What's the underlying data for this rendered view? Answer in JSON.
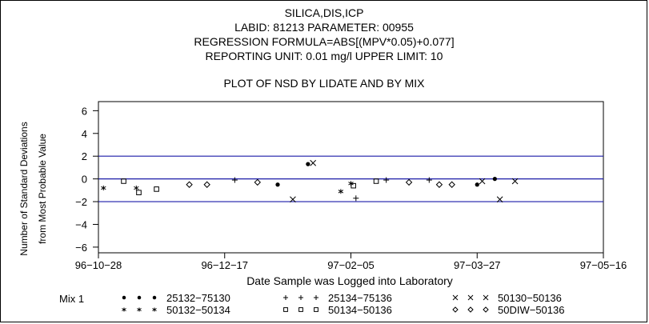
{
  "chart_data": {
    "type": "scatter",
    "title_lines": [
      "SILICA,DIS,ICP",
      "LABID: 81213 PARAMETER: 00955",
      "REGRESSION FORMULA=ABS[(MPV*0.05)+0.077]",
      "REPORTING UNIT: 0.01 mg/l UPPER LIMIT: 10"
    ],
    "subtitle": "PLOT OF NSD BY LIDATE AND BY MIX",
    "ylabel_lines": [
      "Number of Standard Deviations",
      "from Most Probable Value"
    ],
    "xlabel": "Date Sample was Logged into Laboratory",
    "ylim": [
      -6.5,
      6.8
    ],
    "yticks": [
      6,
      4,
      2,
      0,
      -2,
      -4,
      -6
    ],
    "ytick_labels": [
      "6",
      "4",
      "2",
      "0",
      "−2",
      "−4",
      "−6"
    ],
    "xlim": [
      "1996-10-28",
      "1997-05-16"
    ],
    "xticks": [
      "1996-10-28",
      "1996-12-17",
      "1997-02-05",
      "1997-03-27",
      "1997-05-16"
    ],
    "xtick_labels": [
      "96−10−28",
      "96−12−17",
      "97−02−05",
      "97−03−27",
      "97−05−16"
    ],
    "reference_lines": [
      {
        "y": 2,
        "color": "#1a1aa8"
      },
      {
        "y": 0,
        "color": "#1a1aa8"
      },
      {
        "y": -2,
        "color": "#1a1aa8"
      }
    ],
    "legend_title": "Mix 1",
    "legend_placement": "bottom",
    "series": [
      {
        "name": "25132−75130",
        "marker": "dot",
        "points": [
          {
            "x": "1997-01-07",
            "y": -0.5
          },
          {
            "x": "1997-01-19",
            "y": 1.3
          },
          {
            "x": "1997-03-27",
            "y": -0.5
          },
          {
            "x": "1997-04-03",
            "y": 0.0
          }
        ]
      },
      {
        "name": "25134−75136",
        "marker": "plus",
        "points": [
          {
            "x": "1996-12-21",
            "y": -0.1
          },
          {
            "x": "1997-02-07",
            "y": -1.7
          },
          {
            "x": "1997-02-19",
            "y": -0.1
          },
          {
            "x": "1997-03-08",
            "y": -0.1
          }
        ]
      },
      {
        "name": "50130−50136",
        "marker": "x",
        "points": [
          {
            "x": "1997-01-13",
            "y": -1.8
          },
          {
            "x": "1997-01-21",
            "y": 1.4
          },
          {
            "x": "1997-03-29",
            "y": -0.2
          },
          {
            "x": "1997-04-05",
            "y": -1.8
          },
          {
            "x": "1997-04-11",
            "y": -0.2
          }
        ]
      },
      {
        "name": "50132−50134",
        "marker": "star",
        "points": [
          {
            "x": "1996-10-30",
            "y": -0.8
          },
          {
            "x": "1996-11-12",
            "y": -0.8
          },
          {
            "x": "1997-02-01",
            "y": -1.1
          },
          {
            "x": "1997-02-05",
            "y": -0.4
          }
        ]
      },
      {
        "name": "50134−50136",
        "marker": "square",
        "points": [
          {
            "x": "1996-11-07",
            "y": -0.2
          },
          {
            "x": "1996-11-13",
            "y": -1.2
          },
          {
            "x": "1996-11-20",
            "y": -0.9
          },
          {
            "x": "1997-02-06",
            "y": -0.6
          },
          {
            "x": "1997-02-15",
            "y": -0.2
          }
        ]
      },
      {
        "name": "50DIW−50136",
        "marker": "diamond",
        "points": [
          {
            "x": "1996-12-03",
            "y": -0.5
          },
          {
            "x": "1996-12-10",
            "y": -0.5
          },
          {
            "x": "1996-12-30",
            "y": -0.3
          },
          {
            "x": "1997-02-28",
            "y": -0.3
          },
          {
            "x": "1997-03-12",
            "y": -0.5
          },
          {
            "x": "1997-03-17",
            "y": -0.5
          }
        ]
      }
    ],
    "legend_order": [
      "25132−75130",
      "25134−75136",
      "50130−50136",
      "50132−50134",
      "50134−50136",
      "50DIW−50136"
    ]
  }
}
